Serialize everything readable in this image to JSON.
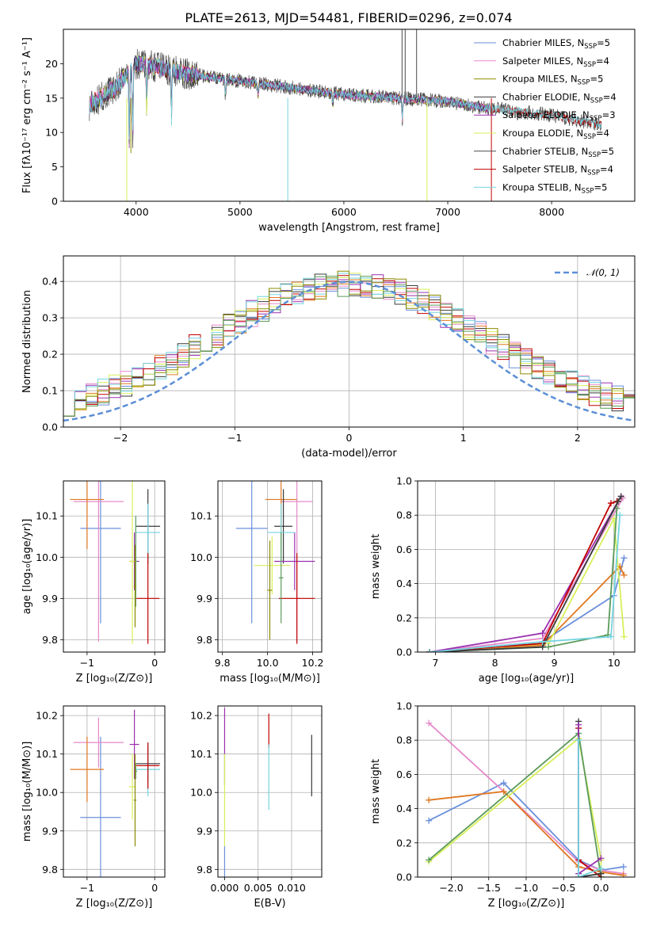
{
  "colors": {
    "Chabrier MILES": "#6a8fdb",
    "Salpeter MILES": "#e58ac9",
    "Kroupa MILES": "#8b8b00",
    "Chabrier ELODIE": "#3a3a3a",
    "Salpeter ELODIE": "#9b30b0",
    "Kroupa ELODIE": "#d8ef5a",
    "Chabrier STELIB": "#4a4a4a",
    "Salpeter STELIB": "#c00000",
    "Kroupa STELIB": "#74d4e0",
    "orange": "#e07820",
    "green": "#5a9a5a",
    "normal": "#5b8fd6"
  },
  "chart_data": [
    {
      "type": "line",
      "title": "PLATE=2613, MJD=54481, FIBERID=0296, z=0.074",
      "xlabel": "wavelength [Angstrom, rest frame]",
      "ylabel": "Flux [fλ10⁻¹⁷ erg cm⁻² s⁻¹ A⁻¹]",
      "xlim": [
        3300,
        8800
      ],
      "ylim": [
        0,
        25
      ],
      "xticks": [
        "4000",
        "5000",
        "6000",
        "7000",
        "8000"
      ],
      "yticks": [
        "0",
        "5",
        "10",
        "15",
        "20"
      ],
      "legend_position": "top-right",
      "legend": [
        {
          "name": "Chabrier MILES, N",
          "sub": "SSP",
          "eq": "=5"
        },
        {
          "name": "Salpeter MILES, N",
          "sub": "SSP",
          "eq": "=4"
        },
        {
          "name": "Kroupa MILES, N",
          "sub": "SSP",
          "eq": "=5"
        },
        {
          "name": "Chabrier ELODIE, N",
          "sub": "SSP",
          "eq": "=4"
        },
        {
          "name": "Salpeter ELODIE, N",
          "sub": "SSP",
          "eq": "=3"
        },
        {
          "name": "Kroupa ELODIE, N",
          "sub": "SSP",
          "eq": "=4"
        },
        {
          "name": "Chabrier STELIB, N",
          "sub": "SSP",
          "eq": "=5"
        },
        {
          "name": "Salpeter STELIB, N",
          "sub": "SSP",
          "eq": "=4"
        },
        {
          "name": "Kroupa STELIB, N",
          "sub": "SSP",
          "eq": "=5"
        }
      ],
      "continuum": {
        "x": [
          3550,
          3800,
          4000,
          4200,
          4500,
          5000,
          5500,
          6000,
          6500,
          7000,
          7400
        ],
        "y": [
          14,
          16.5,
          20,
          19.5,
          18.5,
          17.5,
          16.5,
          15.5,
          15,
          14.5,
          13.5
        ]
      },
      "continuum_stelib": {
        "x": [
          7400,
          8000,
          8500
        ],
        "y": [
          13.5,
          12.5,
          11
        ]
      }
    },
    {
      "type": "bar",
      "xlabel": "(data-model)/error",
      "ylabel": "Normed distribution",
      "xlim": [
        -2.5,
        2.5
      ],
      "ylim": [
        0,
        0.47
      ],
      "xticks": [
        "−2",
        "−1",
        "0",
        "1",
        "2"
      ],
      "yticks": [
        "0.0",
        "0.1",
        "0.2",
        "0.3",
        "0.4"
      ],
      "legend_position": "top-right",
      "normal_label": "𝒩(0, 1)",
      "bin_width": 0.1
    },
    {
      "type": "scatter",
      "xlabel": "Z [log₁₀(Z/Z⊙)]",
      "ylabel": "age  [log₁₀(age/yr)]",
      "xlim": [
        -1.35,
        0.15
      ],
      "ylim": [
        9.77,
        10.185
      ],
      "xticks": [
        "−1",
        "0"
      ],
      "yticks": [
        "9.8",
        "9.9",
        "10.0",
        "10.1"
      ],
      "points": [
        {
          "c": "Chabrier MILES",
          "x": -0.8,
          "xe": 0.3,
          "y": 10.07,
          "ye": 0.23
        },
        {
          "c": "Salpeter MILES",
          "x": -0.83,
          "xe": 0.37,
          "y": 10.135,
          "ye": 0.34
        },
        {
          "c": "orange",
          "x": -1.0,
          "xe": 0.25,
          "y": 10.14,
          "ye": 0.12
        },
        {
          "c": "Chabrier ELODIE",
          "x": -0.1,
          "xe": 0.18,
          "y": 10.075,
          "ye": 0.09
        },
        {
          "c": "Salpeter ELODIE",
          "x": -0.3,
          "xe": 0.07,
          "y": 9.99,
          "ye": 0.07
        },
        {
          "c": "Kroupa ELODIE",
          "x": -0.33,
          "xe": 0.05,
          "y": 9.99,
          "ye": 0.2
        },
        {
          "c": "Kroupa STELIB",
          "x": -0.1,
          "xe": 0.18,
          "y": 10.06,
          "ye": 0.07
        },
        {
          "c": "Salpeter STELIB",
          "x": -0.1,
          "xe": 0.17,
          "y": 9.9,
          "ye": 0.11
        },
        {
          "c": "green",
          "x": -0.28,
          "xe": 0.02,
          "y": 9.99,
          "ye": 0.11
        },
        {
          "c": "Kroupa MILES",
          "x": -0.29,
          "xe": 0.02,
          "y": 9.93,
          "ye": 0.1
        }
      ]
    },
    {
      "type": "scatter",
      "xlabel": "mass [log₁₀(M/M⊙)]",
      "ylabel": "",
      "xlim": [
        9.78,
        10.24
      ],
      "ylim": [
        9.77,
        10.185
      ],
      "xticks": [
        "9.8",
        "10.0",
        "10.2"
      ],
      "yticks": [
        "9.8",
        "9.9",
        "10.0",
        "10.1"
      ],
      "points": [
        {
          "c": "Chabrier MILES",
          "x": 9.93,
          "xe": 0.07,
          "y": 10.07,
          "ye": 0.23
        },
        {
          "c": "Salpeter MILES",
          "x": 10.13,
          "xe": 0.07,
          "y": 10.135,
          "ye": 0.34
        },
        {
          "c": "orange",
          "x": 10.06,
          "xe": 0.07,
          "y": 10.14,
          "ye": 0.12
        },
        {
          "c": "Chabrier ELODIE",
          "x": 10.07,
          "xe": 0.04,
          "y": 10.075,
          "ye": 0.09
        },
        {
          "c": "Salpeter ELODIE",
          "x": 10.12,
          "xe": 0.09,
          "y": 9.99,
          "ye": 0.07
        },
        {
          "c": "Kroupa ELODIE",
          "x": 10.02,
          "xe": 0.08,
          "y": 9.98,
          "ye": 0.07
        },
        {
          "c": "Kroupa STELIB",
          "x": 10.06,
          "xe": 0.06,
          "y": 10.06,
          "ye": 0.07
        },
        {
          "c": "Salpeter STELIB",
          "x": 10.13,
          "xe": 0.08,
          "y": 9.9,
          "ye": 0.11
        },
        {
          "c": "green",
          "x": 10.06,
          "xe": 0.01,
          "y": 9.95,
          "ye": 0.11
        },
        {
          "c": "Kroupa MILES",
          "x": 10.01,
          "xe": 0.01,
          "y": 9.92,
          "ye": 0.12
        }
      ]
    },
    {
      "type": "line",
      "xlabel": "age  [log₁₀(age/yr)]",
      "ylabel": "mass weight",
      "xlim": [
        6.7,
        10.35
      ],
      "ylim": [
        0,
        1.0
      ],
      "xticks": [
        "7",
        "8",
        "9",
        "10"
      ],
      "yticks": [
        "0.0",
        "0.2",
        "0.4",
        "0.6",
        "0.8",
        "1.0"
      ],
      "series": [
        {
          "c": "Chabrier MILES",
          "x": [
            6.9,
            8.8,
            10.0,
            10.17
          ],
          "y": [
            0.0,
            0.06,
            0.33,
            0.55
          ]
        },
        {
          "c": "Salpeter MILES",
          "x": [
            6.9,
            8.8,
            10.15
          ],
          "y": [
            0.0,
            0.08,
            0.9
          ]
        },
        {
          "c": "orange",
          "x": [
            6.9,
            8.8,
            10.1,
            10.17
          ],
          "y": [
            0.0,
            0.04,
            0.5,
            0.45
          ]
        },
        {
          "c": "Salpeter ELODIE",
          "x": [
            6.9,
            8.8,
            10.12
          ],
          "y": [
            0.0,
            0.11,
            0.91
          ]
        },
        {
          "c": "Kroupa ELODIE",
          "x": [
            6.9,
            8.9,
            10.0,
            10.17
          ],
          "y": [
            0.0,
            0.05,
            0.78,
            0.09
          ]
        },
        {
          "c": "green",
          "x": [
            6.9,
            8.9,
            9.9,
            10.05
          ],
          "y": [
            0.0,
            0.03,
            0.1,
            0.84
          ]
        },
        {
          "c": "Salpeter STELIB",
          "x": [
            6.9,
            8.8,
            9.95,
            10.05
          ],
          "y": [
            0.0,
            0.05,
            0.87,
            0.88
          ]
        },
        {
          "c": "Chabrier ELODIE",
          "x": [
            6.9,
            8.8,
            10.07,
            10.12
          ],
          "y": [
            0.0,
            0.03,
            0.88,
            0.91
          ]
        },
        {
          "c": "Kroupa STELIB",
          "x": [
            6.9,
            8.8,
            9.95,
            10.1
          ],
          "y": [
            0.0,
            0.06,
            0.09,
            0.8
          ]
        }
      ]
    },
    {
      "type": "scatter",
      "xlabel": "Z [log₁₀(Z/Z⊙)]",
      "ylabel": "mass [log₁₀(M/M⊙)]",
      "xlim": [
        -1.35,
        0.15
      ],
      "ylim": [
        9.78,
        10.225
      ],
      "xticks": [
        "−1",
        "0"
      ],
      "yticks": [
        "9.8",
        "9.9",
        "10.0",
        "10.1",
        "10.2"
      ],
      "points": [
        {
          "c": "Chabrier MILES",
          "x": -0.8,
          "xe": 0.3,
          "y": 9.935,
          "ye": 0.21
        },
        {
          "c": "Salpeter MILES",
          "x": -0.83,
          "xe": 0.37,
          "y": 10.13,
          "ye": 0.065
        },
        {
          "c": "orange",
          "x": -1.0,
          "xe": 0.25,
          "y": 10.06,
          "ye": 0.085
        },
        {
          "c": "Chabrier ELODIE",
          "x": -0.1,
          "xe": 0.18,
          "y": 10.075,
          "ye": 0.045
        },
        {
          "c": "Salpeter ELODIE",
          "x": -0.3,
          "xe": 0.07,
          "y": 10.125,
          "ye": 0.09
        },
        {
          "c": "Kroupa ELODIE",
          "x": -0.33,
          "xe": 0.05,
          "y": 10.015,
          "ye": 0.085
        },
        {
          "c": "Kroupa STELIB",
          "x": -0.1,
          "xe": 0.18,
          "y": 10.06,
          "ye": 0.07
        },
        {
          "c": "Salpeter STELIB",
          "x": -0.1,
          "xe": 0.17,
          "y": 10.07,
          "ye": 0.06
        },
        {
          "c": "green",
          "x": -0.28,
          "xe": 0.02,
          "y": 10.055,
          "ye": 0.02
        },
        {
          "c": "Kroupa MILES",
          "x": -0.29,
          "xe": 0.02,
          "y": 9.98,
          "ye": 0.12
        }
      ]
    },
    {
      "type": "scatter",
      "xlabel": "E(B-V)",
      "ylabel": "",
      "xlim": [
        -0.001,
        0.0145
      ],
      "ylim": [
        9.78,
        10.225
      ],
      "xticks": [
        "0.000",
        "0.005",
        "0.010"
      ],
      "yticks": [
        "9.8",
        "9.9",
        "10.0",
        "10.1",
        "10.2"
      ],
      "points": [
        {
          "c": "Chabrier MILES",
          "x": 0.0,
          "xe": 0,
          "y": 9.82,
          "ye": 0.04
        },
        {
          "c": "Salpeter ELODIE",
          "x": 0.0,
          "xe": 0,
          "y": 10.12,
          "ye": 0.1
        },
        {
          "c": "Kroupa ELODIE",
          "x": 0.0,
          "xe": 0,
          "y": 9.98,
          "ye": 0.12
        },
        {
          "c": "Salpeter STELIB",
          "x": 0.0066,
          "xe": 0,
          "y": 10.16,
          "ye": 0.045
        },
        {
          "c": "Kroupa STELIB",
          "x": 0.0066,
          "xe": 0,
          "y": 10.04,
          "ye": 0.085
        },
        {
          "c": "Chabrier ELODIE",
          "x": 0.013,
          "xe": 0,
          "y": 10.07,
          "ye": 0.08
        }
      ]
    },
    {
      "type": "line",
      "xlabel": "Z [log₁₀(Z/Z⊙)]",
      "ylabel": "mass weight",
      "xlim": [
        -2.45,
        0.45
      ],
      "ylim": [
        0,
        1.0
      ],
      "xticks": [
        "−2.0",
        "−1.5",
        "−1.0",
        "−0.5",
        "0.0"
      ],
      "yticks": [
        "0.0",
        "0.2",
        "0.4",
        "0.6",
        "0.8",
        "1.0"
      ],
      "series": [
        {
          "c": "Chabrier MILES",
          "x": [
            -2.3,
            -1.3,
            -0.3,
            0.0,
            0.3
          ],
          "y": [
            0.33,
            0.55,
            0.1,
            0.04,
            0.06
          ]
        },
        {
          "c": "Salpeter MILES",
          "x": [
            -2.3,
            -1.3,
            -0.3,
            0.0,
            0.3
          ],
          "y": [
            0.9,
            0.5,
            0.09,
            0.04,
            0.02
          ]
        },
        {
          "c": "orange",
          "x": [
            -2.3,
            -1.3,
            -0.3,
            0.0,
            0.3
          ],
          "y": [
            0.45,
            0.5,
            0.06,
            0.03,
            0.01
          ]
        },
        {
          "c": "Kroupa ELODIE",
          "x": [
            -2.3,
            -0.3,
            0.0,
            0.0
          ],
          "y": [
            0.09,
            0.81,
            0.1,
            0.0
          ]
        },
        {
          "c": "green",
          "x": [
            -2.3,
            -0.3,
            0.0
          ],
          "y": [
            0.1,
            0.84,
            0.0
          ]
        },
        {
          "c": "Salpeter STELIB",
          "x": [
            -0.3,
            -0.3,
            0.0
          ],
          "y": [
            0.87,
            0.1,
            0.0
          ]
        },
        {
          "c": "Chabrier ELODIE",
          "x": [
            -0.3,
            -0.3,
            0.0
          ],
          "y": [
            0.91,
            0.0,
            0.02
          ]
        },
        {
          "c": "Salpeter ELODIE",
          "x": [
            -0.3,
            -0.3,
            0.0
          ],
          "y": [
            0.89,
            0.02,
            0.11
          ]
        },
        {
          "c": "Kroupa STELIB",
          "x": [
            -0.3,
            -0.3,
            0.0
          ],
          "y": [
            0.8,
            0.0,
            0.05
          ]
        }
      ]
    }
  ]
}
